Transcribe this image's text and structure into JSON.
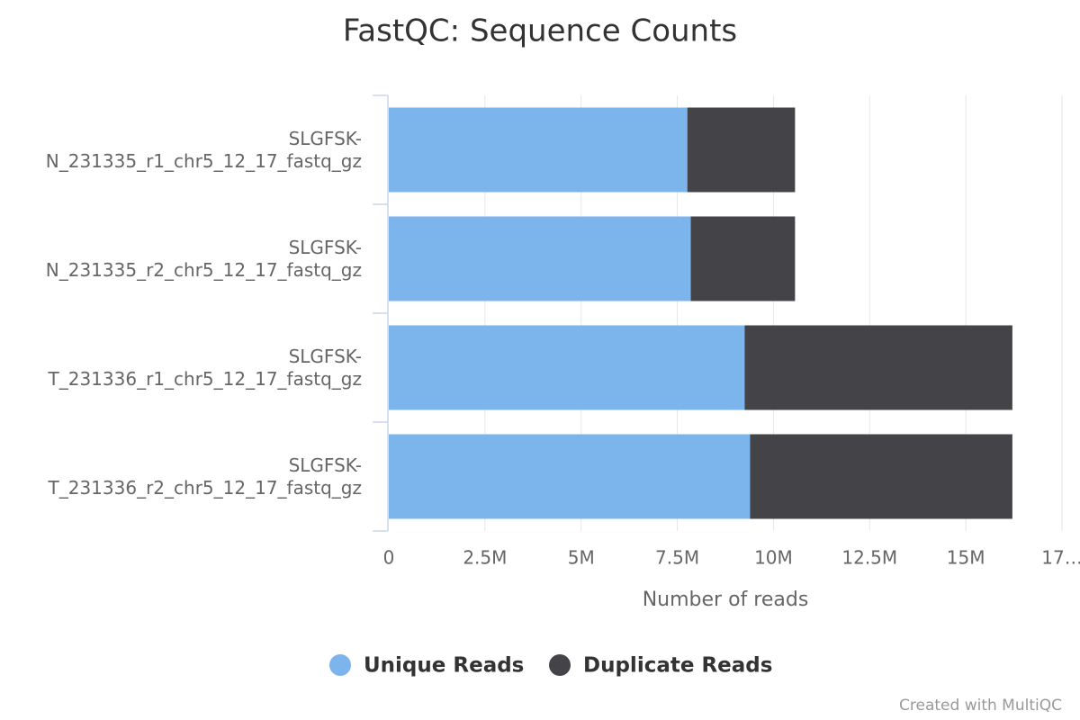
{
  "chart_data": {
    "type": "stacked_bar_horizontal",
    "title": "FastQC: Sequence Counts",
    "categories": [
      "SLGFSK-N_231335_r1_chr5_12_17_fastq_gz",
      "SLGFSK-N_231335_r2_chr5_12_17_fastq_gz",
      "SLGFSK-T_231336_r1_chr5_12_17_fastq_gz",
      "SLGFSK-T_231336_r2_chr5_12_17_fastq_gz"
    ],
    "series": [
      {
        "name": "Unique Reads",
        "color": "#7cb5ec",
        "values": [
          7760000,
          7850000,
          9250000,
          9390000
        ]
      },
      {
        "name": "Duplicate Reads",
        "color": "#434348",
        "values": [
          2800000,
          2710000,
          6960000,
          6820000
        ]
      }
    ],
    "xlabel": "Number of reads",
    "xlim": [
      0,
      17500000
    ],
    "xticks": [
      0,
      {
        "value": 2500000,
        "label": "2.5M"
      },
      {
        "value": 5000000,
        "label": "5M"
      },
      {
        "value": 7500000,
        "label": "7.5M"
      },
      {
        "value": 10000000,
        "label": "10M"
      },
      {
        "value": 12500000,
        "label": "12.5M"
      },
      {
        "value": 15000000,
        "label": "15M"
      },
      {
        "value": 17500000,
        "label": "17…"
      }
    ],
    "grid": true,
    "legend": "bottom",
    "credit": "Created with MultiQC"
  }
}
